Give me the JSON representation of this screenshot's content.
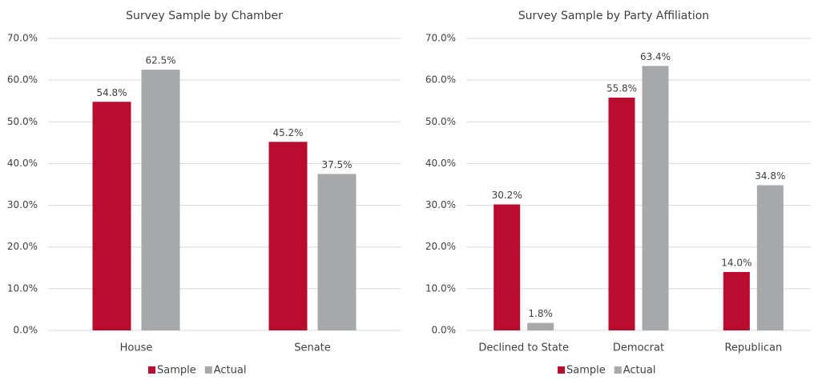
{
  "chart_data": [
    {
      "type": "bar",
      "title": "Survey Sample by Chamber",
      "categories": [
        "House",
        "Senate"
      ],
      "series": [
        {
          "name": "Sample",
          "color": "#ba0c2f",
          "values": [
            54.8,
            45.2
          ],
          "value_labels": [
            "54.8%",
            "45.2%"
          ]
        },
        {
          "name": "Actual",
          "color": "#a7a8aa",
          "values": [
            62.5,
            37.5
          ],
          "value_labels": [
            "62.5%",
            "37.5%"
          ]
        }
      ],
      "ylim": [
        0,
        70
      ],
      "yticks": [
        {
          "value": 0,
          "label": "0.0%"
        },
        {
          "value": 10,
          "label": "10.0%"
        },
        {
          "value": 20,
          "label": "20.0%"
        },
        {
          "value": 30,
          "label": "30.0%"
        },
        {
          "value": 40,
          "label": "40.0%"
        },
        {
          "value": 50,
          "label": "50.0%"
        },
        {
          "value": 60,
          "label": "60.0%"
        },
        {
          "value": 70,
          "label": "70.0%"
        }
      ],
      "grid": true,
      "legend": "bottom"
    },
    {
      "type": "bar",
      "title": "Survey Sample by Party Affiliation",
      "categories": [
        "Declined to State",
        "Democrat",
        "Republican"
      ],
      "series": [
        {
          "name": "Sample",
          "color": "#ba0c2f",
          "values": [
            30.2,
            55.8,
            14.0
          ],
          "value_labels": [
            "30.2%",
            "55.8%",
            "14.0%"
          ]
        },
        {
          "name": "Actual",
          "color": "#a7a8aa",
          "values": [
            1.8,
            63.4,
            34.8
          ],
          "value_labels": [
            "1.8%",
            "63.4%",
            "34.8%"
          ]
        }
      ],
      "ylim": [
        0,
        70
      ],
      "yticks": [
        {
          "value": 0,
          "label": "0.0%"
        },
        {
          "value": 10,
          "label": "10.0%"
        },
        {
          "value": 20,
          "label": "20.0%"
        },
        {
          "value": 30,
          "label": "30.0%"
        },
        {
          "value": 40,
          "label": "40.0%"
        },
        {
          "value": 50,
          "label": "50.0%"
        },
        {
          "value": 60,
          "label": "60.0%"
        },
        {
          "value": 70,
          "label": "70.0%"
        }
      ],
      "grid": true,
      "legend": "bottom"
    }
  ]
}
